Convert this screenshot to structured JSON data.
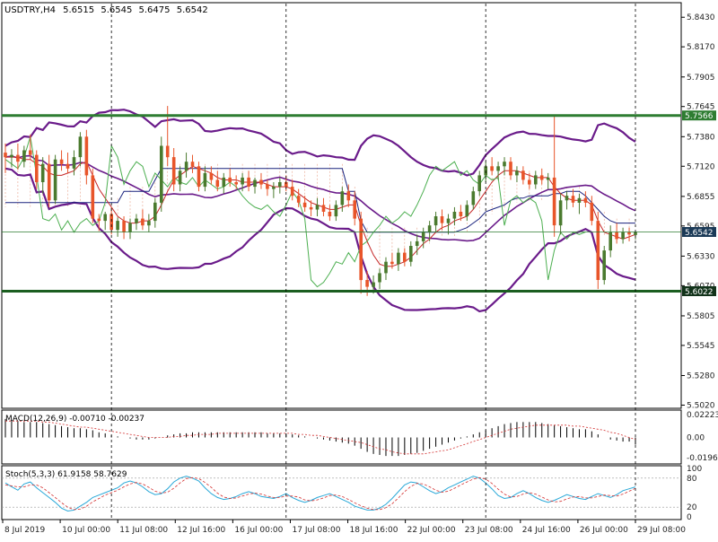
{
  "chart_data": {
    "type": "candlestick",
    "symbol_line": {
      "symbol": "USDTRY,H4",
      "open": "5.6515",
      "high": "5.6545",
      "low": "5.6475",
      "close": "5.6542"
    },
    "price_axis": {
      "ticks": [
        "5.8430",
        "5.8170",
        "5.7905",
        "5.7645",
        "5.7380",
        "5.7120",
        "5.6855",
        "5.6595",
        "5.6330",
        "5.6070",
        "5.5805",
        "5.5545",
        "5.5280",
        "5.5020"
      ],
      "ylim": [
        5.5,
        5.855
      ]
    },
    "levels": {
      "resistance": {
        "value": 5.7566,
        "label": "5.7566",
        "color": "#2e7d32"
      },
      "support": {
        "value": 5.6022,
        "label": "5.6022",
        "color": "#1b5e20"
      },
      "current": {
        "value": 5.6542,
        "label": "5.6542",
        "color": "#2e7d32"
      }
    },
    "time_axis": {
      "labels": [
        "8 Jul 2019",
        "10 Jul 00:00",
        "11 Jul 08:00",
        "12 Jul 16:00",
        "16 Jul 00:00",
        "17 Jul 08:00",
        "18 Jul 16:00",
        "22 Jul 00:00",
        "23 Jul 08:00",
        "24 Jul 16:00",
        "26 Jul 00:00",
        "29 Jul 08:00"
      ]
    },
    "candles": [
      [
        5.724,
        5.732,
        5.706,
        5.72
      ],
      [
        5.72,
        5.727,
        5.711,
        5.722
      ],
      [
        5.722,
        5.732,
        5.709,
        5.716
      ],
      [
        5.716,
        5.73,
        5.711,
        5.726
      ],
      [
        5.726,
        5.74,
        5.718,
        5.722
      ],
      [
        5.722,
        5.726,
        5.692,
        5.698
      ],
      [
        5.698,
        5.72,
        5.688,
        5.714
      ],
      [
        5.714,
        5.722,
        5.676,
        5.682
      ],
      [
        5.682,
        5.722,
        5.679,
        5.718
      ],
      [
        5.718,
        5.726,
        5.708,
        5.714
      ],
      [
        5.714,
        5.724,
        5.706,
        5.71
      ],
      [
        5.71,
        5.726,
        5.704,
        5.72
      ],
      [
        5.72,
        5.742,
        5.712,
        5.738
      ],
      [
        5.738,
        5.744,
        5.696,
        5.704
      ],
      [
        5.704,
        5.71,
        5.662,
        5.666
      ],
      [
        5.666,
        5.67,
        5.655,
        5.664
      ],
      [
        5.664,
        5.672,
        5.656,
        5.67
      ],
      [
        5.67,
        5.676,
        5.652,
        5.656
      ],
      [
        5.656,
        5.667,
        5.65,
        5.664
      ],
      [
        5.664,
        5.668,
        5.648,
        5.654
      ],
      [
        5.654,
        5.666,
        5.648,
        5.662
      ],
      [
        5.662,
        5.67,
        5.656,
        5.666
      ],
      [
        5.666,
        5.674,
        5.656,
        5.66
      ],
      [
        5.66,
        5.67,
        5.654,
        5.664
      ],
      [
        5.664,
        5.684,
        5.658,
        5.68
      ],
      [
        5.68,
        5.738,
        5.672,
        5.73
      ],
      [
        5.73,
        5.765,
        5.712,
        5.72
      ],
      [
        5.72,
        5.728,
        5.69,
        5.696
      ],
      [
        5.696,
        5.712,
        5.69,
        5.708
      ],
      [
        5.708,
        5.724,
        5.702,
        5.716
      ],
      [
        5.716,
        5.722,
        5.706,
        5.712
      ],
      [
        5.712,
        5.716,
        5.69,
        5.694
      ],
      [
        5.694,
        5.712,
        5.69,
        5.706
      ],
      [
        5.706,
        5.712,
        5.696,
        5.7
      ],
      [
        5.7,
        5.708,
        5.69,
        5.694
      ],
      [
        5.694,
        5.706,
        5.688,
        5.702
      ],
      [
        5.702,
        5.71,
        5.694,
        5.698
      ],
      [
        5.698,
        5.704,
        5.692,
        5.696
      ],
      [
        5.696,
        5.706,
        5.69,
        5.702
      ],
      [
        5.702,
        5.708,
        5.69,
        5.694
      ],
      [
        5.694,
        5.702,
        5.688,
        5.7
      ],
      [
        5.7,
        5.706,
        5.692,
        5.696
      ],
      [
        5.696,
        5.7,
        5.686,
        5.692
      ],
      [
        5.692,
        5.698,
        5.684,
        5.694
      ],
      [
        5.694,
        5.702,
        5.688,
        5.698
      ],
      [
        5.698,
        5.704,
        5.69,
        5.694
      ],
      [
        5.694,
        5.7,
        5.682,
        5.686
      ],
      [
        5.686,
        5.692,
        5.676,
        5.68
      ],
      [
        5.68,
        5.686,
        5.672,
        5.676
      ],
      [
        5.676,
        5.682,
        5.668,
        5.674
      ],
      [
        5.674,
        5.684,
        5.668,
        5.678
      ],
      [
        5.678,
        5.684,
        5.668,
        5.672
      ],
      [
        5.672,
        5.678,
        5.664,
        5.668
      ],
      [
        5.668,
        5.682,
        5.664,
        5.678
      ],
      [
        5.678,
        5.694,
        5.672,
        5.69
      ],
      [
        5.69,
        5.696,
        5.676,
        5.682
      ],
      [
        5.682,
        5.69,
        5.66,
        5.666
      ],
      [
        5.666,
        5.672,
        5.6,
        5.612
      ],
      [
        5.612,
        5.62,
        5.598,
        5.606
      ],
      [
        5.606,
        5.616,
        5.6,
        5.61
      ],
      [
        5.61,
        5.622,
        5.604,
        5.618
      ],
      [
        5.618,
        5.632,
        5.612,
        5.628
      ],
      [
        5.628,
        5.636,
        5.622,
        5.626
      ],
      [
        5.626,
        5.64,
        5.62,
        5.636
      ],
      [
        5.636,
        5.64,
        5.624,
        5.628
      ],
      [
        5.628,
        5.646,
        5.624,
        5.642
      ],
      [
        5.642,
        5.652,
        5.634,
        5.646
      ],
      [
        5.646,
        5.658,
        5.64,
        5.654
      ],
      [
        5.654,
        5.664,
        5.646,
        5.66
      ],
      [
        5.66,
        5.672,
        5.654,
        5.668
      ],
      [
        5.668,
        5.674,
        5.656,
        5.662
      ],
      [
        5.662,
        5.67,
        5.652,
        5.666
      ],
      [
        5.666,
        5.676,
        5.66,
        5.672
      ],
      [
        5.672,
        5.678,
        5.664,
        5.668
      ],
      [
        5.668,
        5.682,
        5.664,
        5.678
      ],
      [
        5.678,
        5.694,
        5.674,
        5.69
      ],
      [
        5.69,
        5.708,
        5.686,
        5.704
      ],
      [
        5.704,
        5.716,
        5.698,
        5.712
      ],
      [
        5.712,
        5.72,
        5.704,
        5.708
      ],
      [
        5.708,
        5.716,
        5.7,
        5.712
      ],
      [
        5.712,
        5.72,
        5.704,
        5.716
      ],
      [
        5.716,
        5.72,
        5.7,
        5.704
      ],
      [
        5.704,
        5.712,
        5.698,
        5.708
      ],
      [
        5.708,
        5.712,
        5.696,
        5.7
      ],
      [
        5.7,
        5.706,
        5.692,
        5.696
      ],
      [
        5.696,
        5.708,
        5.692,
        5.704
      ],
      [
        5.704,
        5.71,
        5.696,
        5.7
      ],
      [
        5.7,
        5.706,
        5.692,
        5.702
      ],
      [
        5.702,
        5.756,
        5.65,
        5.66
      ],
      [
        5.66,
        5.688,
        5.652,
        5.682
      ],
      [
        5.682,
        5.69,
        5.674,
        5.686
      ],
      [
        5.686,
        5.692,
        5.676,
        5.68
      ],
      [
        5.68,
        5.688,
        5.67,
        5.684
      ],
      [
        5.684,
        5.69,
        5.676,
        5.68
      ],
      [
        5.68,
        5.686,
        5.66,
        5.664
      ],
      [
        5.664,
        5.672,
        5.604,
        5.612
      ],
      [
        5.612,
        5.642,
        5.608,
        5.638
      ],
      [
        5.638,
        5.66,
        5.632,
        5.654
      ],
      [
        5.654,
        5.662,
        5.644,
        5.648
      ],
      [
        5.648,
        5.658,
        5.644,
        5.654
      ],
      [
        5.654,
        5.658,
        5.646,
        5.652
      ],
      [
        5.6515,
        5.6545,
        5.6475,
        5.6542
      ]
    ],
    "ma_fast": [
      5.72,
      5.72,
      5.72,
      5.718,
      5.718,
      5.714,
      5.712,
      5.706,
      5.704,
      5.704,
      5.706,
      5.708,
      5.714,
      5.716,
      5.704,
      5.692,
      5.684,
      5.676,
      5.668,
      5.664,
      5.662,
      5.662,
      5.664,
      5.664,
      5.668,
      5.678,
      5.69,
      5.7,
      5.704,
      5.708,
      5.712,
      5.71,
      5.708,
      5.706,
      5.702,
      5.7,
      5.7,
      5.7,
      5.698,
      5.698,
      5.698,
      5.698,
      5.696,
      5.694,
      5.694,
      5.694,
      5.692,
      5.688,
      5.684,
      5.68,
      5.678,
      5.676,
      5.674,
      5.674,
      5.676,
      5.678,
      5.678,
      5.66,
      5.646,
      5.634,
      5.626,
      5.624,
      5.624,
      5.626,
      5.628,
      5.632,
      5.638,
      5.644,
      5.648,
      5.654,
      5.658,
      5.66,
      5.664,
      5.666,
      5.668,
      5.674,
      5.682,
      5.69,
      5.698,
      5.704,
      5.708,
      5.708,
      5.708,
      5.706,
      5.704,
      5.702,
      5.702,
      5.702,
      5.694,
      5.688,
      5.684,
      5.682,
      5.682,
      5.682,
      5.678,
      5.664,
      5.654,
      5.652,
      5.65,
      5.648,
      5.65,
      5.652
    ],
    "ma_slow": [
      5.68,
      5.68,
      5.68,
      5.68,
      5.68,
      5.68,
      5.68,
      5.68,
      5.68,
      5.68,
      5.68,
      5.68,
      5.68,
      5.68,
      5.68,
      5.68,
      5.68,
      5.68,
      5.68,
      5.69,
      5.69,
      5.69,
      5.69,
      5.69,
      5.7,
      5.71,
      5.71,
      5.71,
      5.71,
      5.71,
      5.71,
      5.71,
      5.71,
      5.71,
      5.71,
      5.71,
      5.71,
      5.71,
      5.71,
      5.71,
      5.71,
      5.71,
      5.71,
      5.71,
      5.71,
      5.71,
      5.71,
      5.71,
      5.71,
      5.71,
      5.71,
      5.71,
      5.71,
      5.71,
      5.71,
      5.69,
      5.69,
      5.664,
      5.654,
      5.654,
      5.654,
      5.654,
      5.654,
      5.654,
      5.654,
      5.654,
      5.654,
      5.654,
      5.654,
      5.654,
      5.654,
      5.654,
      5.654,
      5.656,
      5.658,
      5.662,
      5.666,
      5.672,
      5.674,
      5.676,
      5.678,
      5.682,
      5.684,
      5.684,
      5.686,
      5.686,
      5.686,
      5.686,
      5.688,
      5.688,
      5.69,
      5.69,
      5.69,
      5.686,
      5.68,
      5.674,
      5.668,
      5.664,
      5.662,
      5.662,
      5.662,
      5.662
    ],
    "stoch_k": [
      70,
      62,
      55,
      68,
      72,
      60,
      50,
      40,
      30,
      18,
      12,
      14,
      22,
      30,
      40,
      45,
      50,
      55,
      60,
      70,
      74,
      70,
      62,
      52,
      46,
      48,
      58,
      72,
      80,
      84,
      80,
      74,
      60,
      48,
      40,
      36,
      38,
      42,
      48,
      52,
      48,
      42,
      40,
      38,
      42,
      48,
      40,
      34,
      30,
      34,
      40,
      44,
      48,
      42,
      36,
      30,
      22,
      18,
      14,
      14,
      18,
      26,
      38,
      52,
      66,
      72,
      70,
      62,
      54,
      48,
      52,
      60,
      66,
      72,
      78,
      84,
      80,
      70,
      58,
      44,
      38,
      40,
      48,
      54,
      48,
      40,
      34,
      30,
      34,
      40,
      46,
      42,
      38,
      36,
      42,
      48,
      44,
      40,
      46,
      54,
      58,
      61.9
    ],
    "stoch_d": [
      66,
      64,
      62,
      62,
      66,
      66,
      60,
      50,
      40,
      29,
      20,
      15,
      16,
      22,
      31,
      38,
      45,
      50,
      55,
      62,
      68,
      71,
      68,
      61,
      53,
      49,
      51,
      59,
      70,
      79,
      81,
      79,
      71,
      61,
      49,
      41,
      38,
      39,
      43,
      47,
      49,
      47,
      43,
      40,
      40,
      43,
      43,
      41,
      35,
      33,
      35,
      39,
      44,
      45,
      42,
      36,
      29,
      23,
      18,
      15,
      15,
      19,
      27,
      39,
      52,
      63,
      69,
      68,
      62,
      55,
      51,
      53,
      59,
      66,
      72,
      78,
      81,
      78,
      69,
      57,
      47,
      41,
      42,
      47,
      50,
      47,
      41,
      35,
      31,
      32,
      37,
      41,
      42,
      39,
      39,
      42,
      45,
      44,
      43,
      47,
      53,
      58.8
    ],
    "macd_hist": [
      0.018,
      0.017,
      0.016,
      0.015,
      0.015,
      0.015,
      0.014,
      0.013,
      0.012,
      0.011,
      0.01,
      0.009,
      0.009,
      0.008,
      0.007,
      0.005,
      0.004,
      0.002,
      0.001,
      0.0,
      -0.001,
      -0.002,
      -0.002,
      -0.002,
      -0.001,
      0.0,
      0.002,
      0.003,
      0.004,
      0.004,
      0.005,
      0.005,
      0.005,
      0.005,
      0.005,
      0.005,
      0.005,
      0.005,
      0.005,
      0.005,
      0.005,
      0.005,
      0.004,
      0.004,
      0.004,
      0.004,
      0.003,
      0.002,
      0.001,
      0.0,
      -0.001,
      -0.002,
      -0.003,
      -0.004,
      -0.005,
      -0.006,
      -0.008,
      -0.011,
      -0.014,
      -0.016,
      -0.017,
      -0.018,
      -0.018,
      -0.018,
      -0.017,
      -0.016,
      -0.015,
      -0.013,
      -0.011,
      -0.009,
      -0.007,
      -0.005,
      -0.003,
      -0.001,
      0.001,
      0.003,
      0.005,
      0.007,
      0.009,
      0.011,
      0.013,
      0.014,
      0.015,
      0.015,
      0.015,
      0.015,
      0.014,
      0.013,
      0.012,
      0.011,
      0.01,
      0.009,
      0.008,
      0.008,
      0.006,
      0.003,
      0.0,
      -0.002,
      -0.003,
      -0.004,
      -0.004,
      -0.007
    ],
    "macd_signal": [
      0.016,
      0.016,
      0.016,
      0.016,
      0.016,
      0.016,
      0.015,
      0.015,
      0.014,
      0.013,
      0.012,
      0.011,
      0.01,
      0.01,
      0.009,
      0.008,
      0.007,
      0.006,
      0.005,
      0.004,
      0.003,
      0.002,
      0.001,
      0.0,
      0.0,
      0.0,
      0.0,
      0.001,
      0.001,
      0.002,
      0.002,
      0.003,
      0.003,
      0.003,
      0.004,
      0.004,
      0.004,
      0.004,
      0.004,
      0.004,
      0.004,
      0.004,
      0.004,
      0.004,
      0.004,
      0.004,
      0.004,
      0.003,
      0.003,
      0.002,
      0.002,
      0.001,
      0.0,
      -0.001,
      -0.002,
      -0.003,
      -0.004,
      -0.005,
      -0.007,
      -0.009,
      -0.011,
      -0.012,
      -0.014,
      -0.015,
      -0.016,
      -0.016,
      -0.016,
      -0.016,
      -0.015,
      -0.014,
      -0.013,
      -0.012,
      -0.01,
      -0.008,
      -0.006,
      -0.004,
      -0.002,
      0.0,
      0.002,
      0.004,
      0.006,
      0.008,
      0.009,
      0.01,
      0.011,
      0.012,
      0.012,
      0.012,
      0.012,
      0.012,
      0.012,
      0.011,
      0.011,
      0.01,
      0.009,
      0.008,
      0.007,
      0.005,
      0.004,
      0.002,
      0.0,
      -0.002
    ],
    "panels": {
      "macd": {
        "label": "MACD(12,26,9) -0.00710 -0.00237",
        "ticks": [
          "0.02223",
          "0.00",
          "-0.01967"
        ],
        "range": [
          -0.024,
          0.024
        ]
      },
      "stoch": {
        "label": "Stoch(5,3,3) 61.9158 58.7629",
        "ticks": [
          "100",
          "80",
          "20",
          "0"
        ],
        "range": [
          0,
          100
        ]
      }
    },
    "period_separators": [
      17,
      45,
      77,
      101
    ],
    "colors": {
      "bull": "#4a7a2e",
      "bear": "#e8552a",
      "bollinger": "#6a1b8a",
      "ma_fast": "#c62828",
      "ma_slow": "#1a237e",
      "lagging": "#4caf50",
      "cloud": "#e8a088",
      "stoch_k": "#29a8d8",
      "stoch_d": "#d32f2f",
      "axis_text": "#222222",
      "grid": "#000000"
    }
  }
}
